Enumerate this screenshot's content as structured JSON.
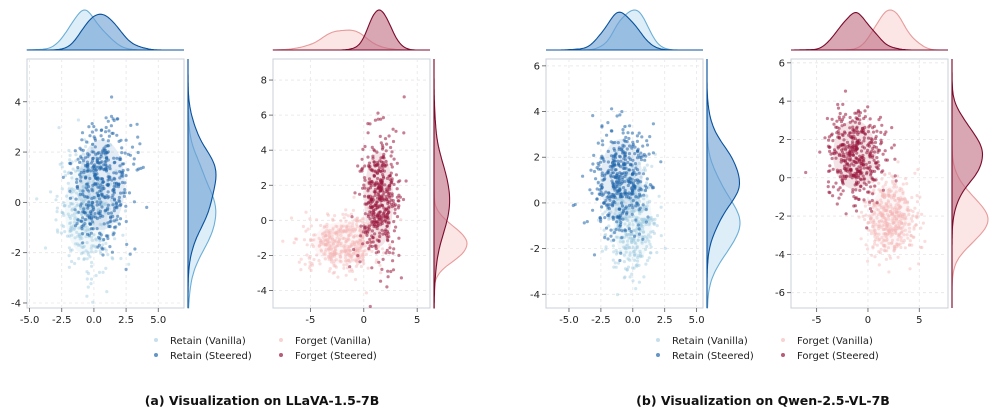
{
  "chart_data": [
    {
      "type": "scatter",
      "group": "a",
      "ylabel_side_density": true,
      "xlim": [
        -5.2,
        7.0
      ],
      "ylim": [
        -4.2,
        5.7
      ],
      "xticks": [
        "-5.0",
        "-2.5",
        "0.0",
        "2.5",
        "5.0"
      ],
      "xtick_values": [
        -5,
        -2.5,
        0,
        2.5,
        5
      ],
      "yticks": [
        "-4",
        "-2",
        "0",
        "2",
        "4"
      ],
      "ytick_values": [
        -4,
        -2,
        0,
        2,
        4
      ],
      "series": [
        {
          "name": "Retain (Vanilla)",
          "color": "#9ecae1",
          "mean": [
            -0.6,
            -0.3
          ],
          "sd": [
            1.1,
            1.2
          ],
          "n": 360,
          "alpha": 0.45
        },
        {
          "name": "Retain (Steered)",
          "color": "#2166ac",
          "mean": [
            0.6,
            0.7
          ],
          "sd": [
            1.2,
            1.2
          ],
          "n": 420,
          "alpha": 0.55
        }
      ]
    },
    {
      "type": "scatter",
      "group": "a",
      "xlim": [
        -8.5,
        6.2
      ],
      "ylim": [
        -5.0,
        9.2
      ],
      "xticks": [
        "-5",
        "0",
        "5"
      ],
      "xtick_values": [
        -5,
        0,
        5
      ],
      "yticks": [
        "-4",
        "-2",
        "0",
        "2",
        "4",
        "6",
        "8"
      ],
      "ytick_values": [
        -4,
        -2,
        0,
        2,
        4,
        6,
        8
      ],
      "series": [
        {
          "name": "Forget (Vanilla)",
          "color": "#f4b6b6",
          "mean": [
            -2.0,
            -1.3
          ],
          "sd": [
            1.8,
            0.8
          ],
          "n": 420,
          "alpha": 0.45
        },
        {
          "name": "Forget (Steered)",
          "color": "#99163d",
          "mean": [
            1.4,
            1.2
          ],
          "sd": [
            0.9,
            1.8
          ],
          "n": 420,
          "alpha": 0.55
        }
      ]
    },
    {
      "type": "scatter",
      "group": "b",
      "xlim": [
        -6.8,
        5.5
      ],
      "ylim": [
        -4.6,
        6.3
      ],
      "xticks": [
        "-5.0",
        "-2.5",
        "0.0",
        "2.5",
        "5.0"
      ],
      "xtick_values": [
        -5,
        -2.5,
        0,
        2.5,
        5
      ],
      "yticks": [
        "-4",
        "-2",
        "0",
        "2",
        "4",
        "6"
      ],
      "ytick_values": [
        -4,
        -2,
        0,
        2,
        4,
        6
      ],
      "series": [
        {
          "name": "Retain (Vanilla)",
          "color": "#9ecae1",
          "mean": [
            0.0,
            -0.8
          ],
          "sd": [
            1.0,
            1.2
          ],
          "n": 380,
          "alpha": 0.45
        },
        {
          "name": "Retain (Steered)",
          "color": "#2166ac",
          "mean": [
            -0.9,
            1.0
          ],
          "sd": [
            1.1,
            1.2
          ],
          "n": 420,
          "alpha": 0.55
        }
      ]
    },
    {
      "type": "scatter",
      "group": "b",
      "xlim": [
        -7.5,
        7.8
      ],
      "ylim": [
        -6.8,
        6.2
      ],
      "xticks": [
        "-5",
        "0",
        "5"
      ],
      "xtick_values": [
        -5,
        0,
        5
      ],
      "yticks": [
        "-6",
        "-4",
        "-2",
        "0",
        "2",
        "4",
        "6"
      ],
      "ytick_values": [
        -6,
        -4,
        -2,
        0,
        2,
        4,
        6
      ],
      "series": [
        {
          "name": "Forget (Vanilla)",
          "color": "#f4b6b6",
          "mean": [
            2.2,
            -2.1
          ],
          "sd": [
            1.3,
            1.1
          ],
          "n": 420,
          "alpha": 0.45
        },
        {
          "name": "Forget (Steered)",
          "color": "#99163d",
          "mean": [
            -1.3,
            1.2
          ],
          "sd": [
            1.4,
            1.2
          ],
          "n": 420,
          "alpha": 0.55
        }
      ]
    }
  ],
  "legends": {
    "a_left": [
      "Retain (Vanilla)",
      "Retain (Steered)"
    ],
    "a_right": [
      "Forget (Vanilla)",
      "Forget (Steered)"
    ],
    "b_left": [
      "Retain (Vanilla)",
      "Retain (Steered)"
    ],
    "b_right": [
      "Forget (Vanilla)",
      "Forget (Steered)"
    ]
  },
  "captions": {
    "a": "(a) Visualization on LLaVA-1.5-7B",
    "b": "(b) Visualization on Qwen-2.5-VL-7B"
  }
}
